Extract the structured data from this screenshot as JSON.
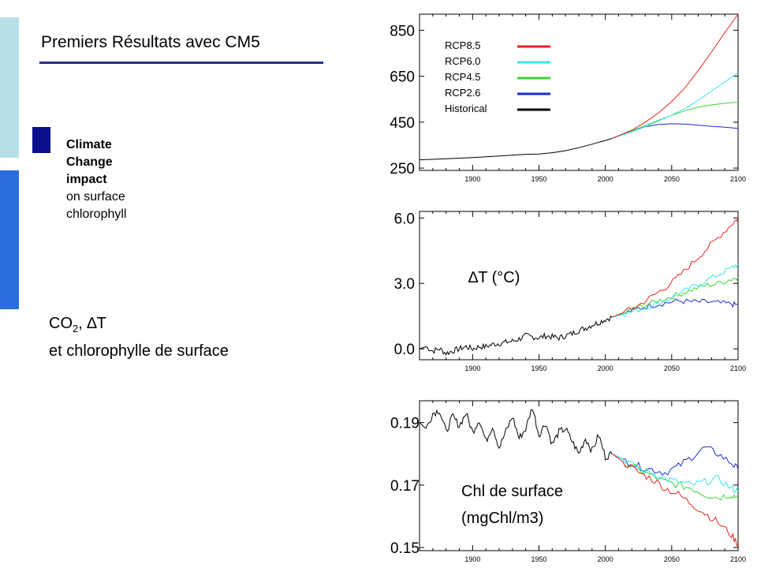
{
  "slide": {
    "title": "Premiers Résultats avec CM5",
    "side": {
      "bold_lines": [
        "Climate",
        "Change",
        "impact"
      ],
      "normal_lines": [
        "on surface",
        "chlorophyll"
      ]
    },
    "co2_label": {
      "co": "CO",
      "sub": "2",
      "rest": ", ∆T",
      "line2": "et chlorophylle de surface"
    },
    "colors": {
      "accent_dark": "#0b0f8c",
      "rule": "#2a2f8e",
      "bar_light": "#b7e0e6",
      "bar_blue": "#2b6ce0"
    }
  },
  "chart_data": [
    {
      "type": "line",
      "title": "",
      "xlim": [
        1860,
        2100
      ],
      "ylim": [
        240,
        920
      ],
      "x_ticks": [
        1900,
        1950,
        2000,
        2050,
        2100
      ],
      "y_ticks": [
        250,
        450,
        650,
        850
      ],
      "y_tick_labels": [
        "250",
        "450",
        "650",
        "850"
      ],
      "legend": {
        "placement": "top-left",
        "entries": [
          {
            "name": "RCP8.5",
            "color": "#e8251f"
          },
          {
            "name": "RCP6.0",
            "color": "#38e6ec"
          },
          {
            "name": "RCP4.5",
            "color": "#3dd431"
          },
          {
            "name": "RCP2.6",
            "color": "#1b2bd4"
          },
          {
            "name": "Historical",
            "color": "#000000"
          }
        ]
      },
      "series": [
        {
          "name": "Historical",
          "color": "#000000",
          "x": [
            1860,
            1880,
            1900,
            1920,
            1940,
            1950,
            1960,
            1970,
            1980,
            1990,
            2000,
            2005
          ],
          "values": [
            286,
            291,
            296,
            303,
            310,
            311,
            317,
            326,
            339,
            354,
            370,
            379
          ]
        },
        {
          "name": "RCP8.5",
          "color": "#e8251f",
          "x": [
            2005,
            2020,
            2030,
            2040,
            2050,
            2060,
            2070,
            2080,
            2090,
            2100
          ],
          "values": [
            379,
            415,
            450,
            490,
            540,
            600,
            675,
            755,
            840,
            920
          ]
        },
        {
          "name": "RCP6.0",
          "color": "#38e6ec",
          "x": [
            2005,
            2020,
            2030,
            2040,
            2050,
            2060,
            2070,
            2080,
            2090,
            2100
          ],
          "values": [
            379,
            408,
            430,
            455,
            480,
            510,
            545,
            585,
            625,
            665
          ]
        },
        {
          "name": "RCP4.5",
          "color": "#3dd431",
          "x": [
            2005,
            2020,
            2030,
            2040,
            2050,
            2060,
            2070,
            2080,
            2090,
            2100
          ],
          "values": [
            379,
            412,
            435,
            458,
            480,
            500,
            515,
            525,
            532,
            537
          ]
        },
        {
          "name": "RCP2.6",
          "color": "#1b2bd4",
          "x": [
            2005,
            2020,
            2030,
            2040,
            2050,
            2060,
            2070,
            2080,
            2090,
            2100
          ],
          "values": [
            379,
            412,
            430,
            440,
            443,
            442,
            437,
            432,
            428,
            423
          ]
        }
      ]
    },
    {
      "type": "line",
      "title": "∆T (°C)",
      "xlim": [
        1860,
        2100
      ],
      "ylim": [
        -0.5,
        6.3
      ],
      "x_ticks": [
        1900,
        1950,
        2000,
        2050,
        2100
      ],
      "y_ticks": [
        0,
        3,
        6
      ],
      "y_tick_labels": [
        "0.0",
        "3.0",
        "6.0"
      ],
      "series": [
        {
          "name": "Historical",
          "color": "#000000",
          "x": [
            1860,
            1865,
            1870,
            1875,
            1880,
            1885,
            1890,
            1895,
            1900,
            1905,
            1910,
            1915,
            1920,
            1925,
            1930,
            1935,
            1940,
            1945,
            1950,
            1955,
            1960,
            1965,
            1970,
            1975,
            1980,
            1985,
            1990,
            1995,
            2000,
            2005
          ],
          "values": [
            0.0,
            0.1,
            -0.1,
            0.0,
            -0.2,
            -0.1,
            0.0,
            0.1,
            0.0,
            0.1,
            0.1,
            0.2,
            0.25,
            0.3,
            0.35,
            0.45,
            0.6,
            0.55,
            0.5,
            0.6,
            0.55,
            0.5,
            0.6,
            0.7,
            0.85,
            0.95,
            1.1,
            1.2,
            1.35,
            1.45
          ]
        },
        {
          "name": "RCP8.5",
          "color": "#e8251f",
          "x": [
            2005,
            2015,
            2025,
            2035,
            2045,
            2055,
            2065,
            2075,
            2085,
            2095,
            2100
          ],
          "values": [
            1.45,
            1.7,
            2.0,
            2.4,
            2.8,
            3.3,
            3.9,
            4.5,
            5.1,
            5.7,
            6.0
          ]
        },
        {
          "name": "RCP6.0",
          "color": "#38e6ec",
          "x": [
            2005,
            2015,
            2025,
            2035,
            2045,
            2055,
            2065,
            2075,
            2085,
            2095,
            2100
          ],
          "values": [
            1.45,
            1.6,
            1.8,
            2.0,
            2.2,
            2.5,
            2.8,
            3.1,
            3.4,
            3.7,
            3.9
          ]
        },
        {
          "name": "RCP4.5",
          "color": "#3dd431",
          "x": [
            2005,
            2015,
            2025,
            2035,
            2045,
            2055,
            2065,
            2075,
            2085,
            2095,
            2100
          ],
          "values": [
            1.45,
            1.65,
            1.9,
            2.1,
            2.3,
            2.5,
            2.7,
            2.9,
            3.0,
            3.2,
            3.3
          ]
        },
        {
          "name": "RCP2.6",
          "color": "#1b2bd4",
          "x": [
            2005,
            2015,
            2025,
            2035,
            2045,
            2055,
            2065,
            2075,
            2085,
            2095,
            2100
          ],
          "values": [
            1.45,
            1.65,
            1.85,
            2.0,
            2.1,
            2.2,
            2.15,
            2.15,
            2.1,
            2.05,
            2.0
          ]
        }
      ]
    },
    {
      "type": "line",
      "title": "Chl de surface (mgChl/m3)",
      "title_line1": "Chl de surface",
      "title_line2": "(mgChl/m3)",
      "xlim": [
        1860,
        2100
      ],
      "ylim": [
        0.149,
        0.197
      ],
      "x_ticks": [
        1900,
        1950,
        2000,
        2050,
        2100
      ],
      "y_ticks": [
        0.15,
        0.17,
        0.19
      ],
      "y_tick_labels": [
        "0.15",
        "0.17",
        "0.19"
      ],
      "series": [
        {
          "name": "Historical",
          "color": "#000000",
          "x": [
            1860,
            1865,
            1870,
            1875,
            1880,
            1885,
            1890,
            1895,
            1900,
            1905,
            1910,
            1915,
            1920,
            1925,
            1930,
            1935,
            1940,
            1945,
            1950,
            1955,
            1960,
            1965,
            1970,
            1975,
            1980,
            1985,
            1990,
            1995,
            2000,
            2005
          ],
          "values": [
            0.19,
            0.188,
            0.193,
            0.194,
            0.187,
            0.192,
            0.189,
            0.193,
            0.187,
            0.191,
            0.184,
            0.189,
            0.182,
            0.187,
            0.192,
            0.185,
            0.188,
            0.195,
            0.186,
            0.19,
            0.183,
            0.187,
            0.188,
            0.184,
            0.18,
            0.185,
            0.181,
            0.186,
            0.179,
            0.18
          ]
        },
        {
          "name": "RCP8.5",
          "color": "#e8251f",
          "x": [
            2005,
            2015,
            2025,
            2035,
            2045,
            2055,
            2065,
            2075,
            2085,
            2095,
            2100
          ],
          "values": [
            0.18,
            0.177,
            0.174,
            0.172,
            0.169,
            0.167,
            0.164,
            0.161,
            0.158,
            0.154,
            0.151
          ]
        },
        {
          "name": "RCP6.0",
          "color": "#38e6ec",
          "x": [
            2005,
            2015,
            2025,
            2035,
            2045,
            2055,
            2065,
            2075,
            2085,
            2095,
            2100
          ],
          "values": [
            0.18,
            0.178,
            0.175,
            0.174,
            0.172,
            0.171,
            0.17,
            0.171,
            0.172,
            0.169,
            0.168
          ]
        },
        {
          "name": "RCP4.5",
          "color": "#3dd431",
          "x": [
            2005,
            2015,
            2025,
            2035,
            2045,
            2055,
            2065,
            2075,
            2085,
            2095,
            2100
          ],
          "values": [
            0.18,
            0.177,
            0.175,
            0.173,
            0.171,
            0.17,
            0.169,
            0.167,
            0.166,
            0.167,
            0.166
          ]
        },
        {
          "name": "RCP2.6",
          "color": "#1b2bd4",
          "x": [
            2005,
            2015,
            2025,
            2035,
            2045,
            2055,
            2065,
            2075,
            2085,
            2095,
            2100
          ],
          "values": [
            0.18,
            0.178,
            0.176,
            0.175,
            0.174,
            0.176,
            0.179,
            0.182,
            0.18,
            0.177,
            0.175
          ]
        }
      ]
    }
  ]
}
